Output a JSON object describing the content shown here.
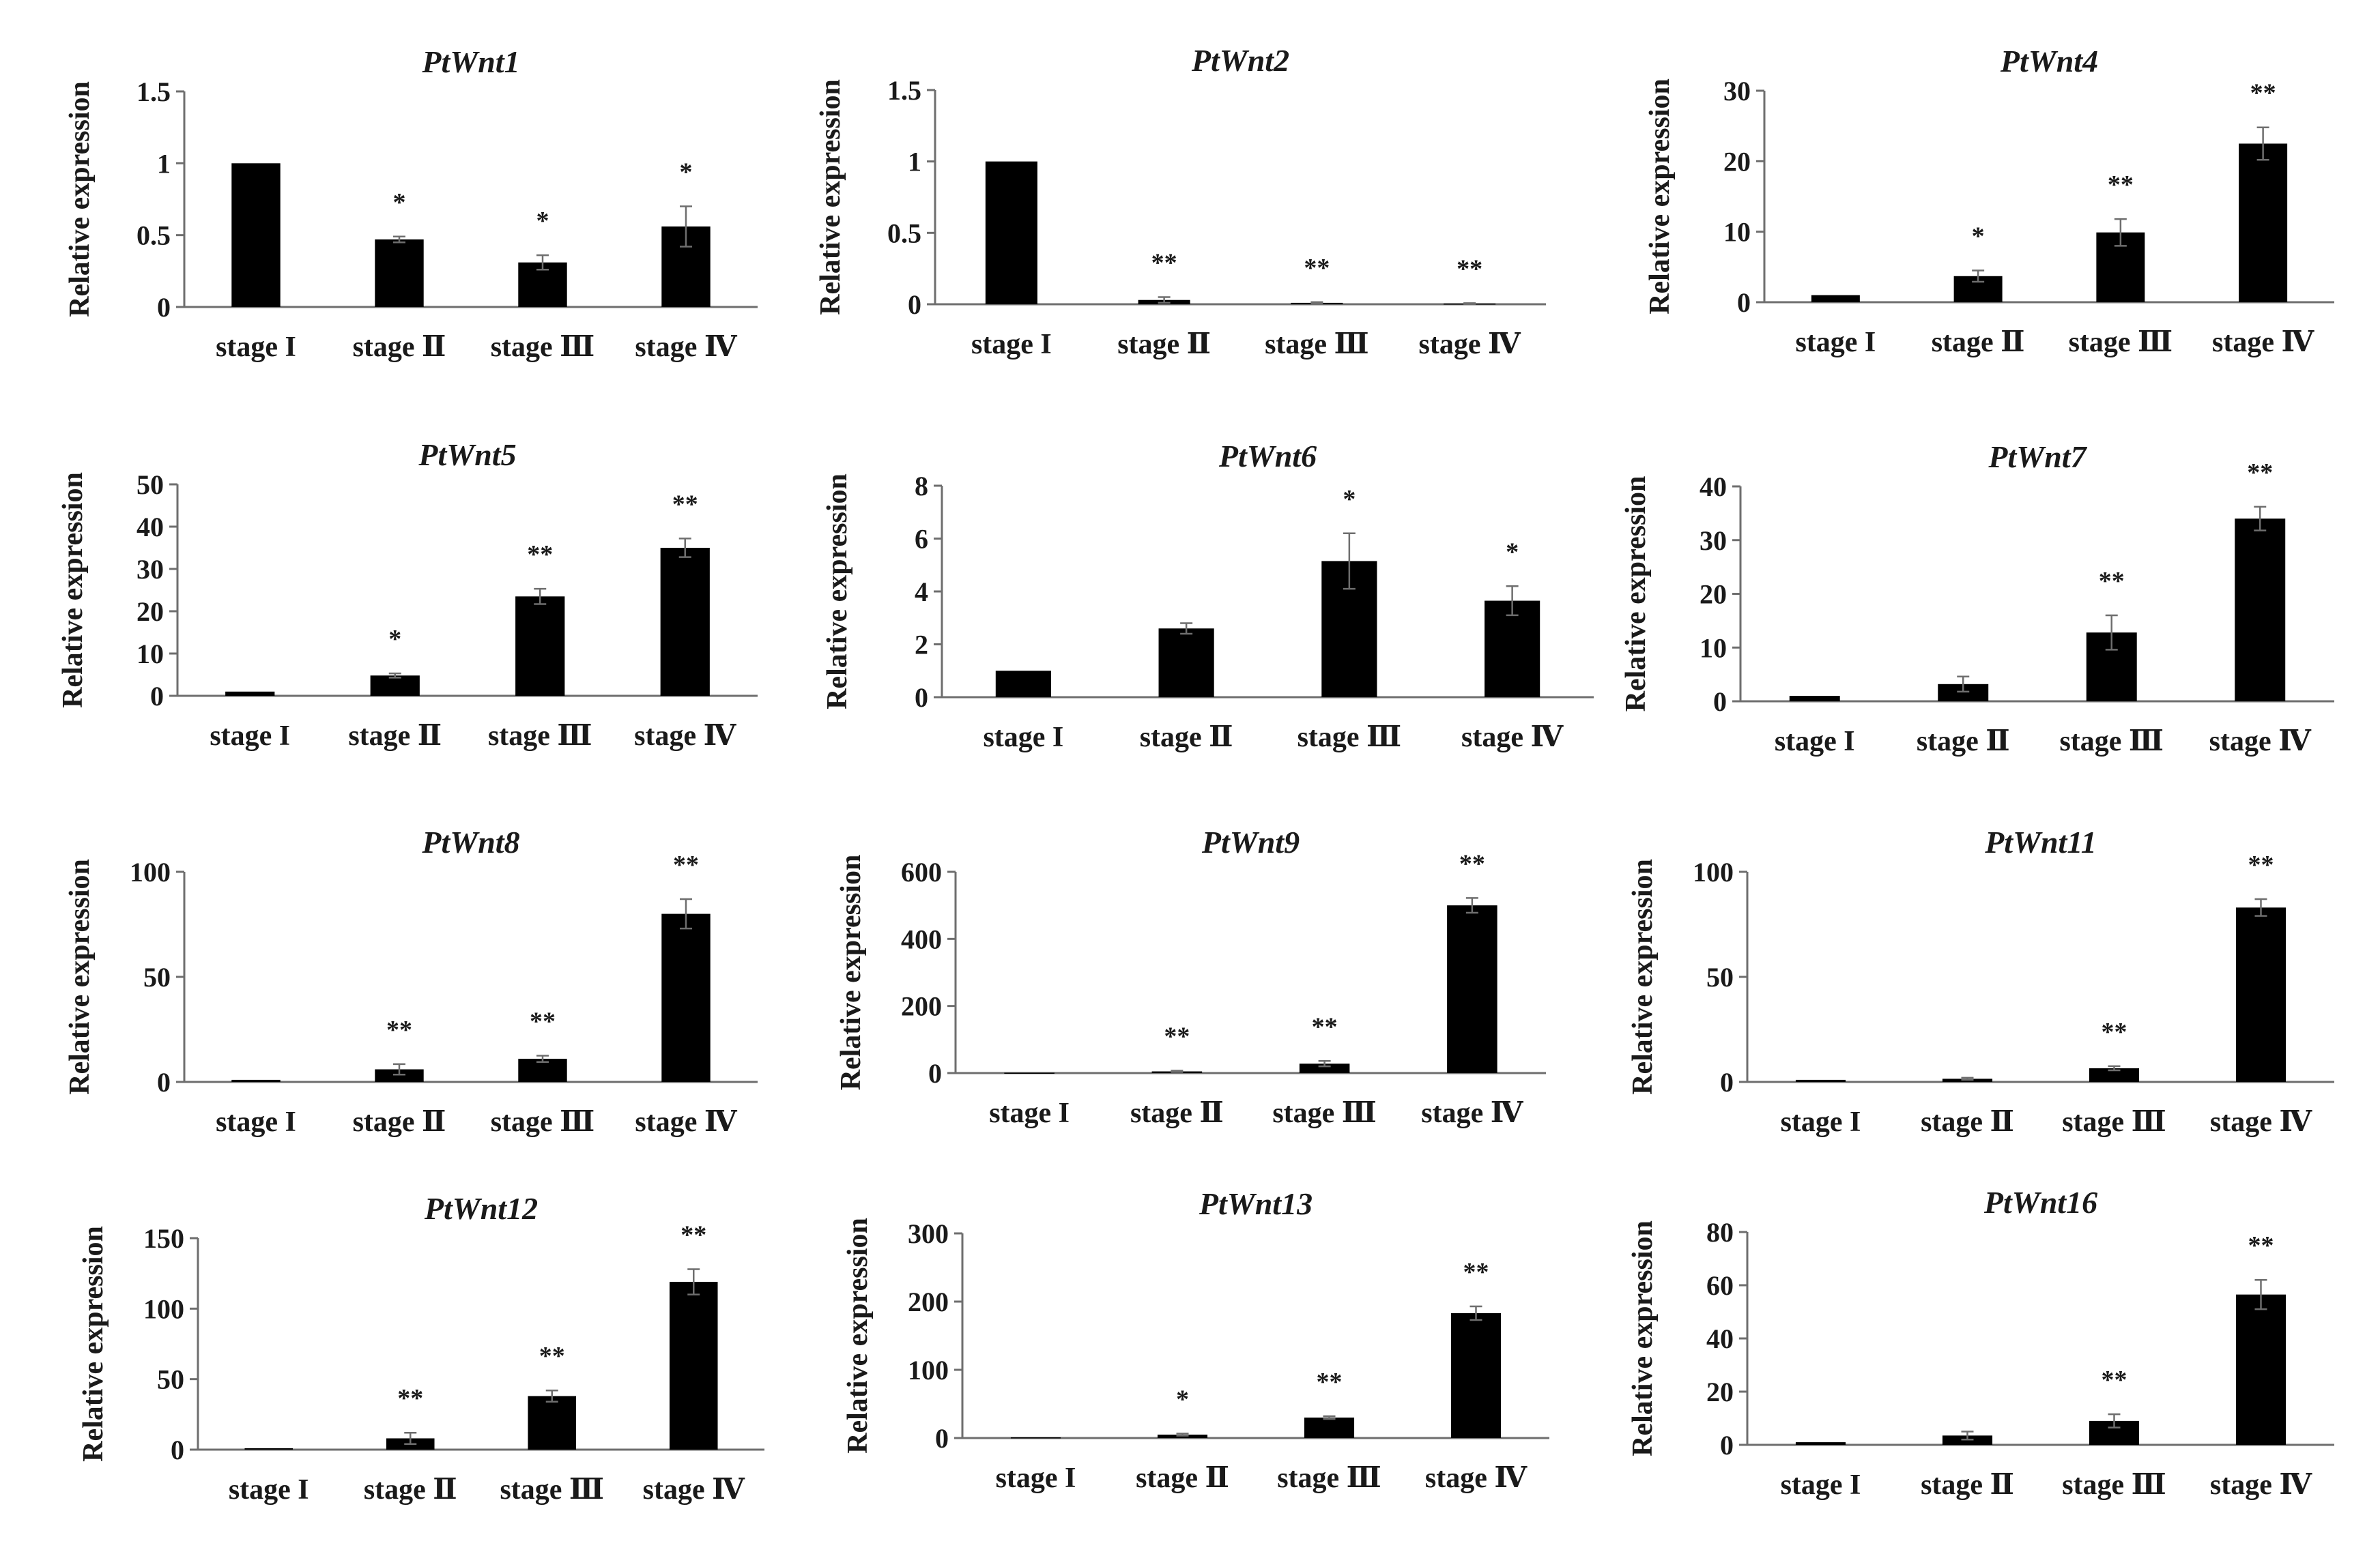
{
  "y_axis_label": "Relative expression",
  "chart_data": [
    {
      "type": "bar",
      "title": "PtWnt1",
      "ylabel": "Relative expression",
      "categories": [
        "stage I",
        "stage Ⅱ",
        "stage Ⅲ",
        "stage Ⅳ"
      ],
      "values": [
        1,
        0.47,
        0.31,
        0.56
      ],
      "errors": [
        0,
        0.02,
        0.05,
        0.14
      ],
      "significance": [
        "",
        "*",
        "*",
        "*"
      ],
      "ylim": [
        0,
        1.5
      ],
      "yticks": [
        0,
        0.5,
        1,
        1.5
      ],
      "ytick_labels": [
        "0",
        "0.5",
        "1",
        "1.5"
      ]
    },
    {
      "type": "bar",
      "title": "PtWnt2",
      "ylabel": "Relative expression",
      "categories": [
        "stage I",
        "stage Ⅱ",
        "stage Ⅲ",
        "stage Ⅳ"
      ],
      "values": [
        1,
        0.03,
        0.01,
        0.005
      ],
      "errors": [
        0,
        0.02,
        0.005,
        0.003
      ],
      "significance": [
        "",
        "**",
        "**",
        "**"
      ],
      "ylim": [
        0,
        1.5
      ],
      "yticks": [
        0,
        0.5,
        1,
        1.5
      ],
      "ytick_labels": [
        "0",
        "0.5",
        "1",
        "1.5"
      ]
    },
    {
      "type": "bar",
      "title": "PtWnt4",
      "ylabel": "Relative expression",
      "categories": [
        "stage I",
        "stage Ⅱ",
        "stage Ⅲ",
        "stage Ⅳ"
      ],
      "values": [
        1,
        3.7,
        9.9,
        22.5
      ],
      "errors": [
        0,
        0.8,
        1.9,
        2.3
      ],
      "significance": [
        "",
        "*",
        "**",
        "**"
      ],
      "ylim": [
        0,
        30
      ],
      "yticks": [
        0,
        10,
        20,
        30
      ],
      "ytick_labels": [
        "0",
        "10",
        "20",
        "30"
      ]
    },
    {
      "type": "bar",
      "title": "PtWnt5",
      "ylabel": "Relative expression",
      "categories": [
        "stage I",
        "stage Ⅱ",
        "stage Ⅲ",
        "stage Ⅳ"
      ],
      "values": [
        1,
        4.8,
        23.5,
        35
      ],
      "errors": [
        0,
        0.5,
        1.8,
        2.2
      ],
      "significance": [
        "",
        "*",
        "**",
        "**"
      ],
      "ylim": [
        0,
        50
      ],
      "yticks": [
        0,
        10,
        20,
        30,
        40,
        50
      ],
      "ytick_labels": [
        "0",
        "10",
        "20",
        "30",
        "40",
        "50"
      ]
    },
    {
      "type": "bar",
      "title": "PtWnt6",
      "ylabel": "Relative expression",
      "categories": [
        "stage I",
        "stage Ⅱ",
        "stage Ⅲ",
        "stage Ⅳ"
      ],
      "values": [
        1,
        2.6,
        5.15,
        3.65
      ],
      "errors": [
        0,
        0.2,
        1.05,
        0.55
      ],
      "significance": [
        "",
        "",
        "*",
        "*"
      ],
      "ylim": [
        0,
        8
      ],
      "yticks": [
        0,
        2,
        4,
        6,
        8
      ],
      "ytick_labels": [
        "0",
        "2",
        "4",
        "6",
        "8"
      ]
    },
    {
      "type": "bar",
      "title": "PtWnt7",
      "ylabel": "Relative expression",
      "categories": [
        "stage I",
        "stage Ⅱ",
        "stage Ⅲ",
        "stage Ⅳ"
      ],
      "values": [
        1,
        3.2,
        12.8,
        34
      ],
      "errors": [
        0,
        1.4,
        3.2,
        2.2
      ],
      "significance": [
        "",
        "",
        "**",
        "**"
      ],
      "ylim": [
        0,
        40
      ],
      "yticks": [
        0,
        10,
        20,
        30,
        40
      ],
      "ytick_labels": [
        "0",
        "10",
        "20",
        "30",
        "40"
      ]
    },
    {
      "type": "bar",
      "title": "PtWnt8",
      "ylabel": "Relative expression",
      "categories": [
        "stage I",
        "stage Ⅱ",
        "stage Ⅲ",
        "stage Ⅳ"
      ],
      "values": [
        1,
        6,
        11,
        80
      ],
      "errors": [
        0,
        2.5,
        1.5,
        7
      ],
      "significance": [
        "",
        "**",
        "**",
        "**"
      ],
      "ylim": [
        0,
        100
      ],
      "yticks": [
        0,
        50,
        100
      ],
      "ytick_labels": [
        "0",
        "50",
        "100"
      ]
    },
    {
      "type": "bar",
      "title": "PtWnt9",
      "ylabel": "Relative expression",
      "categories": [
        "stage I",
        "stage Ⅱ",
        "stage Ⅲ",
        "stage Ⅳ"
      ],
      "values": [
        1,
        5,
        28,
        500
      ],
      "errors": [
        0,
        2,
        8,
        22
      ],
      "significance": [
        "",
        "**",
        "**",
        "**"
      ],
      "ylim": [
        0,
        600
      ],
      "yticks": [
        0,
        200,
        400,
        600
      ],
      "ytick_labels": [
        "0",
        "200",
        "400",
        "600"
      ]
    },
    {
      "type": "bar",
      "title": "PtWnt11",
      "ylabel": "Relative expression",
      "categories": [
        "stage I",
        "stage Ⅱ",
        "stage Ⅲ",
        "stage Ⅳ"
      ],
      "values": [
        1,
        1.5,
        6.5,
        83
      ],
      "errors": [
        0,
        0.5,
        1,
        4
      ],
      "significance": [
        "",
        "",
        "**",
        "**"
      ],
      "ylim": [
        0,
        100
      ],
      "yticks": [
        0,
        50,
        100
      ],
      "ytick_labels": [
        "0",
        "50",
        "100"
      ]
    },
    {
      "type": "bar",
      "title": "PtWnt12",
      "ylabel": "Relative expression",
      "categories": [
        "stage I",
        "stage Ⅱ",
        "stage Ⅲ",
        "stage Ⅳ"
      ],
      "values": [
        1,
        8,
        38,
        119
      ],
      "errors": [
        0,
        4,
        4,
        9
      ],
      "significance": [
        "",
        "**",
        "**",
        "**"
      ],
      "ylim": [
        0,
        150
      ],
      "yticks": [
        0,
        50,
        100,
        150
      ],
      "ytick_labels": [
        "0",
        "50",
        "100",
        "150"
      ]
    },
    {
      "type": "bar",
      "title": "PtWnt13",
      "ylabel": "Relative expression",
      "categories": [
        "stage I",
        "stage Ⅱ",
        "stage Ⅲ",
        "stage Ⅳ"
      ],
      "values": [
        1,
        5,
        30,
        183
      ],
      "errors": [
        0,
        1.5,
        2,
        10
      ],
      "significance": [
        "",
        "*",
        "**",
        "**"
      ],
      "ylim": [
        0,
        300
      ],
      "yticks": [
        0,
        100,
        200,
        300
      ],
      "ytick_labels": [
        "0",
        "100",
        "200",
        "300"
      ]
    },
    {
      "type": "bar",
      "title": "PtWnt16",
      "ylabel": "Relative expression",
      "categories": [
        "stage I",
        "stage Ⅱ",
        "stage Ⅲ",
        "stage Ⅳ"
      ],
      "values": [
        1,
        3.5,
        9,
        56.5
      ],
      "errors": [
        0,
        1.5,
        2.5,
        5.5
      ],
      "significance": [
        "",
        "",
        "**",
        "**"
      ],
      "ylim": [
        0,
        80
      ],
      "yticks": [
        0,
        20,
        40,
        60,
        80
      ],
      "ytick_labels": [
        "0",
        "20",
        "40",
        "60",
        "80"
      ]
    }
  ]
}
